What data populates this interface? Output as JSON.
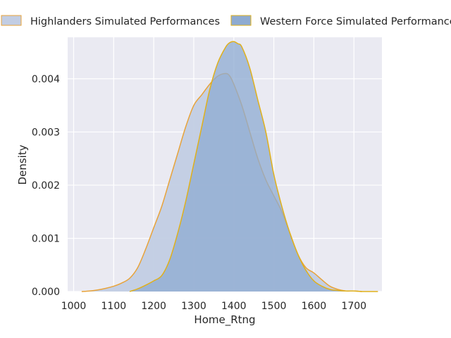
{
  "chart_data": {
    "type": "area",
    "title": "",
    "xlabel": "Home_Rtng",
    "ylabel": "Density",
    "xlim": [
      985,
      1770
    ],
    "ylim": [
      0,
      0.00478
    ],
    "x_ticks": [
      {
        "value": 1000,
        "label": "1000"
      },
      {
        "value": 1100,
        "label": "1100"
      },
      {
        "value": 1200,
        "label": "1200"
      },
      {
        "value": 1300,
        "label": "1300"
      },
      {
        "value": 1400,
        "label": "1400"
      },
      {
        "value": 1500,
        "label": "1500"
      },
      {
        "value": 1600,
        "label": "1600"
      },
      {
        "value": 1700,
        "label": "1700"
      }
    ],
    "y_ticks": [
      {
        "value": 0.0,
        "label": "0.000"
      },
      {
        "value": 0.001,
        "label": "0.001"
      },
      {
        "value": 0.002,
        "label": "0.002"
      },
      {
        "value": 0.003,
        "label": "0.003"
      },
      {
        "value": 0.004,
        "label": "0.004"
      }
    ],
    "grid": true,
    "legend_position": "top",
    "series": [
      {
        "name": "Highlanders Simulated Performances",
        "fill": "#c2cde3",
        "stroke": "#e8a33a",
        "x": [
          1020,
          1040,
          1060,
          1080,
          1100,
          1120,
          1140,
          1160,
          1180,
          1200,
          1220,
          1240,
          1260,
          1280,
          1300,
          1320,
          1340,
          1360,
          1380,
          1390,
          1400,
          1420,
          1440,
          1460,
          1480,
          1500,
          1520,
          1540,
          1560,
          1580,
          1600,
          1620,
          1640,
          1660,
          1680,
          1700,
          1720
        ],
        "y": [
          0.0,
          1e-05,
          3e-05,
          6e-05,
          0.0001,
          0.00016,
          0.00025,
          0.00045,
          0.0008,
          0.0012,
          0.0016,
          0.0021,
          0.0026,
          0.0031,
          0.0035,
          0.0037,
          0.0039,
          0.00405,
          0.0041,
          0.00405,
          0.0039,
          0.0035,
          0.003,
          0.0025,
          0.0021,
          0.0018,
          0.0015,
          0.0011,
          0.0007,
          0.00045,
          0.00035,
          0.00022,
          0.0001,
          4e-05,
          1e-05,
          1e-05,
          0.0
        ]
      },
      {
        "name": "Western Force Simulated Performances",
        "fill": "#8eabd1",
        "stroke": "#e0b01a",
        "x": [
          1140,
          1160,
          1180,
          1200,
          1220,
          1240,
          1260,
          1280,
          1300,
          1320,
          1340,
          1360,
          1380,
          1390,
          1400,
          1410,
          1420,
          1440,
          1460,
          1480,
          1500,
          1520,
          1540,
          1560,
          1580,
          1600,
          1620,
          1640,
          1660,
          1680,
          1700,
          1720,
          1740,
          1760
        ],
        "y": [
          0.0,
          5e-05,
          0.00012,
          0.0002,
          0.0003,
          0.0006,
          0.0011,
          0.0017,
          0.0024,
          0.0031,
          0.0038,
          0.0043,
          0.0046,
          0.00468,
          0.0047,
          0.00466,
          0.0046,
          0.0042,
          0.0036,
          0.003,
          0.0022,
          0.0016,
          0.0011,
          0.0007,
          0.0004,
          0.0002,
          0.0001,
          4e-05,
          2e-05,
          1e-05,
          1e-05,
          0.0,
          0.0,
          0.0
        ]
      }
    ]
  }
}
